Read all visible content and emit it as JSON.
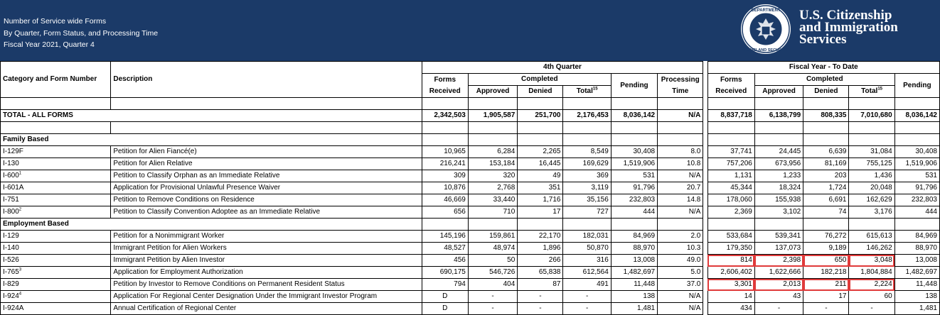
{
  "header": {
    "title_lines": [
      "Number of Service wide Forms",
      "By Quarter, Form Status, and Processing Time",
      "Fiscal Year 2021, Quarter 4"
    ],
    "agency_lines": [
      "U.S. Citizenship",
      "and Immigration",
      "Services"
    ],
    "seal_text_top": "DEPARTMENT OF",
    "seal_text_bottom": "HOMELAND SECURITY"
  },
  "columns": {
    "category": "Category and Form Number",
    "description": "Description",
    "quarter_group": "4th Quarter",
    "ytd_group": "Fiscal Year - To Date",
    "forms": "Forms",
    "received": "Received",
    "completed": "Completed",
    "approved": "Approved",
    "denied": "Denied",
    "total": "Total",
    "total_note": "15",
    "pending": "Pending",
    "processing": "Processing",
    "time": "Time"
  },
  "total_row": {
    "label": "TOTAL - ALL FORMS",
    "q": [
      "2,342,503",
      "1,905,587",
      "251,700",
      "2,176,453",
      "8,036,142",
      "N/A"
    ],
    "ytd": [
      "8,837,718",
      "6,138,799",
      "808,335",
      "7,010,680",
      "8,036,142"
    ]
  },
  "sections": [
    {
      "label": "Family Based",
      "rows": [
        {
          "form": "I-129F",
          "note": "",
          "desc": "Petition for Alien Fiancé(e)",
          "q": [
            "10,965",
            "6,284",
            "2,265",
            "8,549",
            "30,408",
            "8.0"
          ],
          "ytd": [
            "37,741",
            "24,445",
            "6,639",
            "31,084",
            "30,408"
          ]
        },
        {
          "form": "I-130",
          "note": "",
          "desc": "Petition for Alien Relative",
          "q": [
            "216,241",
            "153,184",
            "16,445",
            "169,629",
            "1,519,906",
            "10.8"
          ],
          "ytd": [
            "757,206",
            "673,956",
            "81,169",
            "755,125",
            "1,519,906"
          ]
        },
        {
          "form": "I-600",
          "note": "1",
          "desc": "Petition to Classify Orphan as an Immediate Relative",
          "q": [
            "309",
            "320",
            "49",
            "369",
            "531",
            "N/A"
          ],
          "ytd": [
            "1,131",
            "1,233",
            "203",
            "1,436",
            "531"
          ]
        },
        {
          "form": "I-601A",
          "note": "",
          "desc": "Application for Provisional Unlawful Presence Waiver",
          "q": [
            "10,876",
            "2,768",
            "351",
            "3,119",
            "91,796",
            "20.7"
          ],
          "ytd": [
            "45,344",
            "18,324",
            "1,724",
            "20,048",
            "91,796"
          ]
        },
        {
          "form": "I-751",
          "note": "",
          "desc": "Petition to Remove Conditions on Residence",
          "q": [
            "46,669",
            "33,440",
            "1,716",
            "35,156",
            "232,803",
            "14.8"
          ],
          "ytd": [
            "178,060",
            "155,938",
            "6,691",
            "162,629",
            "232,803"
          ]
        },
        {
          "form": "I-800",
          "note": "2",
          "desc": "Petition to Classify Convention Adoptee as an Immediate Relative",
          "q": [
            "656",
            "710",
            "17",
            "727",
            "444",
            "N/A"
          ],
          "ytd": [
            "2,369",
            "3,102",
            "74",
            "3,176",
            "444"
          ]
        }
      ]
    },
    {
      "label": "Employment Based",
      "rows": [
        {
          "form": "I-129",
          "note": "",
          "desc": "Petition for a Nonimmigrant Worker",
          "q": [
            "145,196",
            "159,861",
            "22,170",
            "182,031",
            "84,969",
            "2.0"
          ],
          "ytd": [
            "533,684",
            "539,341",
            "76,272",
            "615,613",
            "84,969"
          ]
        },
        {
          "form": "I-140",
          "note": "",
          "desc": "Immigrant Petition for Alien Workers",
          "q": [
            "48,527",
            "48,974",
            "1,896",
            "50,870",
            "88,970",
            "10.3"
          ],
          "ytd": [
            "179,350",
            "137,073",
            "9,189",
            "146,262",
            "88,970"
          ]
        },
        {
          "form": "I-526",
          "note": "",
          "desc": "Immigrant Petition by Alien Investor",
          "q": [
            "456",
            "50",
            "266",
            "316",
            "13,008",
            "49.0"
          ],
          "ytd": [
            "814",
            "2,398",
            "650",
            "3,048",
            "13,008"
          ],
          "highlight": true
        },
        {
          "form": "I-765",
          "note": "3",
          "desc": "Application for Employment Authorization",
          "q": [
            "690,175",
            "546,726",
            "65,838",
            "612,564",
            "1,482,697",
            "5.0"
          ],
          "ytd": [
            "2,606,402",
            "1,622,666",
            "182,218",
            "1,804,884",
            "1,482,697"
          ]
        },
        {
          "form": "I-829",
          "note": "",
          "desc": "Petition by Investor to Remove Conditions on Permanent Resident Status",
          "q": [
            "794",
            "404",
            "87",
            "491",
            "11,448",
            "37.0"
          ],
          "ytd": [
            "3,301",
            "2,013",
            "211",
            "2,224",
            "11,448"
          ],
          "highlight": true
        },
        {
          "form": "I-924",
          "note": "4",
          "desc": "Application For Regional Center Designation Under the Immigrant Investor Program",
          "q": [
            "D",
            "-",
            "-",
            "-",
            "138",
            "N/A"
          ],
          "ytd": [
            "14",
            "43",
            "17",
            "60",
            "138"
          ]
        },
        {
          "form": "I-924A",
          "note": "",
          "desc": "Annual Certification of Regional Center",
          "q": [
            "D",
            "-",
            "-",
            "-",
            "1,481",
            "N/A"
          ],
          "ytd": [
            "434",
            "-",
            "-",
            "-",
            "1,481"
          ]
        }
      ]
    }
  ]
}
